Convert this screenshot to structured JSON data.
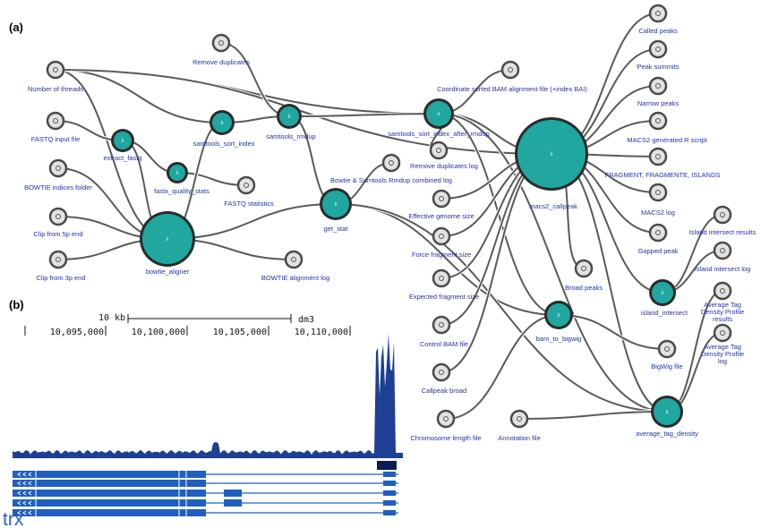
{
  "panel_a": {
    "label": "(a)",
    "nodes": [
      {
        "label": "Number of threads"
      },
      {
        "label": "FASTQ input file"
      },
      {
        "label": "BOWTIE indices folder"
      },
      {
        "label": "Clip from 5p end"
      },
      {
        "label": "Clip from 3p end"
      },
      {
        "label": "Remove duplicates"
      },
      {
        "label": "extract_fastq"
      },
      {
        "label": "fastx_quality_stats"
      },
      {
        "label": "samtools_sort_index"
      },
      {
        "label": "samtools_rmdup"
      },
      {
        "label": "bowtie_aligner"
      },
      {
        "label": "get_stat"
      },
      {
        "label": "samtools_sort_index_after_rmdup"
      },
      {
        "label": "macs2_callpeak"
      },
      {
        "label": "bam_to_bigwig"
      },
      {
        "label": "island_intersect"
      },
      {
        "label": "average_tag_density"
      },
      {
        "label": "Effective genome size"
      },
      {
        "label": "Force fragment size"
      },
      {
        "label": "Expected fragment size"
      },
      {
        "label": "Control BAM file"
      },
      {
        "label": "Callpeak broad"
      },
      {
        "label": "Chromosome length file"
      },
      {
        "label": "Annotation file"
      },
      {
        "label": "FASTQ statistics"
      },
      {
        "label": "BOWTIE alignment log"
      },
      {
        "label": "Bowtie & Samtools Rmdup combined log"
      },
      {
        "label": "Remove duplicates log"
      },
      {
        "label": "Coordinate sorted BAM alignment file (+index BAI)"
      },
      {
        "label": "Called peaks"
      },
      {
        "label": "Peak summits"
      },
      {
        "label": "Narrow peaks"
      },
      {
        "label": "MACS2 generated R script"
      },
      {
        "label": "FRAGMENT, FRAGMENTE, ISLANDS"
      },
      {
        "label": "MACS2 log"
      },
      {
        "label": "Gapped peak"
      },
      {
        "label": "Broad peaks"
      },
      {
        "label": "BigWig file"
      },
      {
        "label": "Island intersect results"
      },
      {
        "label": "Island intersect log"
      },
      {
        "label": "Average Tag Density Profile results"
      },
      {
        "label": "Average Tag Density Profile log"
      }
    ]
  },
  "panel_b": {
    "label": "(b)",
    "scale": "10 kb",
    "assembly": "dm3",
    "coordinates": [
      "10,095,000",
      "10,100,000",
      "10,105,000",
      "10,110,000"
    ],
    "gene": "trx"
  }
}
